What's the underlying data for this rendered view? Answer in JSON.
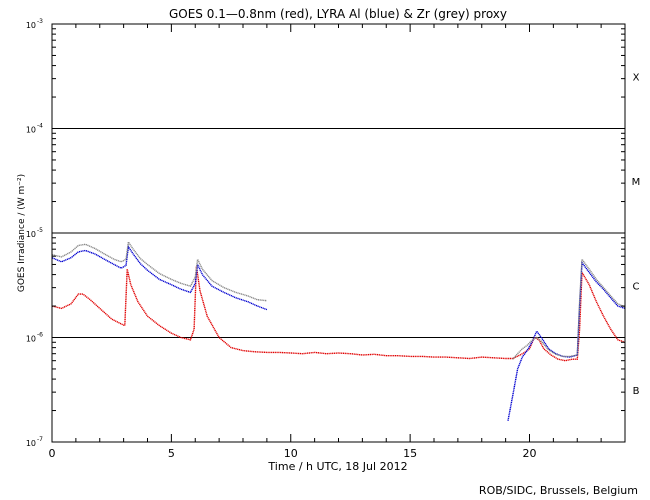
{
  "chart_data": {
    "type": "line",
    "title": "GOES 0.1—0.8nm (red), LYRA Al (blue) & Zr (grey) proxy",
    "xlabel": "Time / h UTC, 18 Jul 2012",
    "ylabel": "GOES Irradiance / (W m⁻²)",
    "xlim": [
      0,
      24
    ],
    "ylim": [
      1e-07,
      0.001
    ],
    "yscale": "log",
    "x_ticks": [
      0,
      5,
      10,
      15,
      20
    ],
    "y_ticks": [
      {
        "value": 1e-07,
        "base": "10",
        "exp": "-7"
      },
      {
        "value": 1e-06,
        "base": "10",
        "exp": "-6"
      },
      {
        "value": 1e-05,
        "base": "10",
        "exp": "-5"
      },
      {
        "value": 0.0001,
        "base": "10",
        "exp": "-4"
      },
      {
        "value": 0.001,
        "base": "10",
        "exp": "-3"
      }
    ],
    "class_levels": [
      1e-06,
      1e-05,
      0.0001
    ],
    "flare_classes": [
      {
        "label": "B",
        "y": 3.162e-07
      },
      {
        "label": "C",
        "y": 3.162e-06
      },
      {
        "label": "M",
        "y": 3.162e-05
      },
      {
        "label": "X",
        "y": 0.0003162
      }
    ],
    "credit": "ROB/SIDC, Brussels, Belgium",
    "series": [
      {
        "name": "red",
        "color": "#e00000",
        "x": [
          0,
          0.4,
          0.8,
          1.1,
          1.3,
          1.6,
          2.0,
          2.5,
          2.9,
          3.05,
          3.15,
          3.3,
          3.6,
          4.0,
          4.5,
          5.0,
          5.4,
          5.8,
          5.95,
          6.05,
          6.2,
          6.5,
          7.0,
          7.5,
          8.0,
          8.5,
          9.0,
          9.5,
          10.0,
          10.5,
          11.0,
          11.5,
          12.0,
          12.5,
          13.0,
          13.5,
          14.0,
          14.5,
          15.0,
          15.5,
          16.0,
          16.5,
          17.0,
          17.5,
          18.0,
          18.5,
          19.0,
          19.3,
          19.6,
          19.8,
          20.0,
          20.2,
          20.4,
          20.6,
          20.9,
          21.2,
          21.5,
          21.8,
          22.0,
          22.1,
          22.2,
          22.5,
          22.8,
          23.1,
          23.4,
          23.7,
          24.0
        ],
        "y": [
          2e-06,
          1.9e-06,
          2.1e-06,
          2.6e-06,
          2.6e-06,
          2.3e-06,
          1.9e-06,
          1.5e-06,
          1.35e-06,
          1.3e-06,
          4.5e-06,
          3.2e-06,
          2.2e-06,
          1.6e-06,
          1.3e-06,
          1.1e-06,
          1e-06,
          9.5e-07,
          1.2e-06,
          4.8e-06,
          2.8e-06,
          1.6e-06,
          1e-06,
          8e-07,
          7.5e-07,
          7.3e-07,
          7.2e-07,
          7.2e-07,
          7.1e-07,
          7e-07,
          7.2e-07,
          7e-07,
          7.1e-07,
          7e-07,
          6.8e-07,
          6.9e-07,
          6.7e-07,
          6.7e-07,
          6.6e-07,
          6.6e-07,
          6.5e-07,
          6.5e-07,
          6.4e-07,
          6.3e-07,
          6.5e-07,
          6.4e-07,
          6.3e-07,
          6.3e-07,
          6.8e-07,
          7.2e-07,
          7.8e-07,
          1e-06,
          9.5e-07,
          7.8e-07,
          6.8e-07,
          6.2e-07,
          6e-07,
          6.2e-07,
          6.2e-07,
          1.2e-06,
          4.2e-06,
          3.2e-06,
          2.2e-06,
          1.6e-06,
          1.2e-06,
          9.5e-07,
          9e-07
        ]
      },
      {
        "name": "blue",
        "color": "#0000d0",
        "x": [
          0,
          0.4,
          0.8,
          1.1,
          1.4,
          1.8,
          2.2,
          2.6,
          2.9,
          3.1,
          3.2,
          3.4,
          3.7,
          4.0,
          4.5,
          5.0,
          5.4,
          5.8,
          6.0,
          6.1,
          6.3,
          6.7,
          7.2,
          7.7,
          8.2,
          8.6,
          9.0,
          19.1,
          19.3,
          19.5,
          19.7,
          19.9,
          20.1,
          20.3,
          20.5,
          20.8,
          21.1,
          21.4,
          21.7,
          22.0,
          22.1,
          22.2,
          22.5,
          22.8,
          23.1,
          23.4,
          23.7,
          24.0
        ],
        "y": [
          5.8e-06,
          5.3e-06,
          5.8e-06,
          6.6e-06,
          6.8e-06,
          6.3e-06,
          5.6e-06,
          5e-06,
          4.6e-06,
          4.9e-06,
          7.4e-06,
          6.3e-06,
          5.1e-06,
          4.4e-06,
          3.6e-06,
          3.2e-06,
          2.9e-06,
          2.7e-06,
          3.3e-06,
          5e-06,
          4e-06,
          3.1e-06,
          2.7e-06,
          2.4e-06,
          2.2e-06,
          2e-06,
          1.85e-06,
          1.6e-07,
          2.8e-07,
          5e-07,
          6.5e-07,
          7.5e-07,
          9e-07,
          1.15e-06,
          1e-06,
          7.8e-07,
          7e-07,
          6.6e-07,
          6.5e-07,
          6.8e-07,
          2e-06,
          5.2e-06,
          4.2e-06,
          3.4e-06,
          2.9e-06,
          2.4e-06,
          2e-06,
          1.9e-06
        ]
      },
      {
        "name": "grey",
        "color": "#888888",
        "x": [
          0,
          0.4,
          0.8,
          1.1,
          1.4,
          1.8,
          2.2,
          2.6,
          2.9,
          3.1,
          3.2,
          3.4,
          3.7,
          4.0,
          4.5,
          5.0,
          5.4,
          5.8,
          6.0,
          6.1,
          6.3,
          6.7,
          7.2,
          7.7,
          8.2,
          8.6,
          9.0,
          19.3,
          19.5,
          19.7,
          19.9,
          20.1,
          20.3,
          20.5,
          20.8,
          21.1,
          21.4,
          21.7,
          22.0,
          22.1,
          22.2,
          22.5,
          22.8,
          23.1,
          23.4,
          23.7,
          24.0
        ],
        "y": [
          6.2e-06,
          5.9e-06,
          6.6e-06,
          7.6e-06,
          7.8e-06,
          7.1e-06,
          6.3e-06,
          5.6e-06,
          5.3e-06,
          5.6e-06,
          8.2e-06,
          7e-06,
          5.7e-06,
          5e-06,
          4.1e-06,
          3.6e-06,
          3.3e-06,
          3.1e-06,
          3.8e-06,
          5.6e-06,
          4.5e-06,
          3.5e-06,
          3e-06,
          2.7e-06,
          2.5e-06,
          2.3e-06,
          2.25e-06,
          6.2e-07,
          7e-07,
          7.8e-07,
          8.4e-07,
          9.4e-07,
          1e-06,
          9.2e-07,
          7.6e-07,
          6.9e-07,
          6.6e-07,
          6.6e-07,
          6.8e-07,
          2.2e-06,
          5.6e-06,
          4.5e-06,
          3.6e-06,
          3e-06,
          2.5e-06,
          2.1e-06,
          1.95e-06
        ]
      }
    ]
  }
}
